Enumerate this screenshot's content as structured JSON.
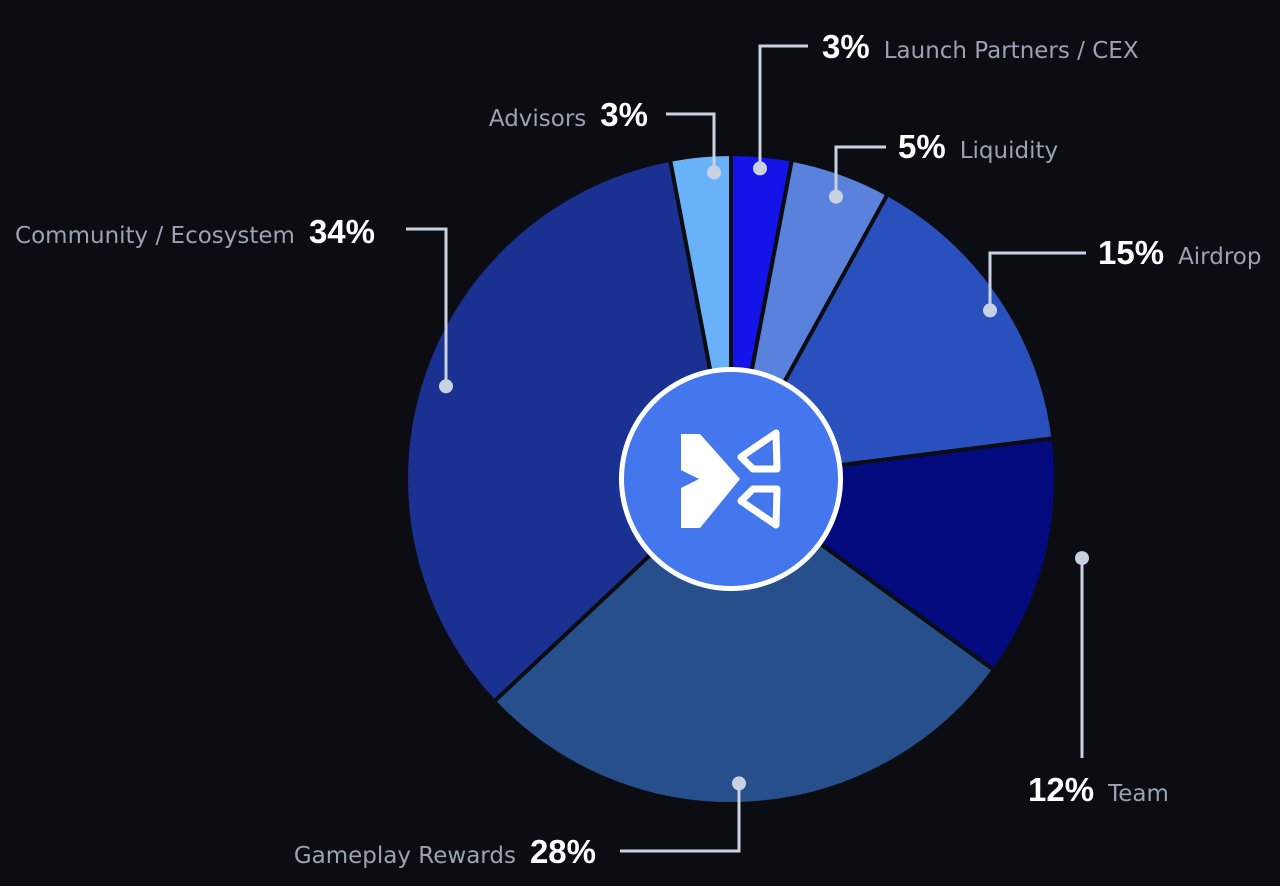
{
  "chart_data": {
    "type": "pie",
    "variant": "donut-with-center-logo",
    "start_angle_deg": 0,
    "direction": "clockwise",
    "slices": [
      {
        "label": "Launch Partners / CEX",
        "value": 3,
        "value_label": "3%",
        "color": "#1414e8"
      },
      {
        "label": "Liquidity",
        "value": 5,
        "value_label": "5%",
        "color": "#5a82dc"
      },
      {
        "label": "Airdrop",
        "value": 15,
        "value_label": "15%",
        "color": "#2a50be"
      },
      {
        "label": "Team",
        "value": 12,
        "value_label": "12%",
        "color": "#030a7e"
      },
      {
        "label": "Gameplay Rewards",
        "value": 28,
        "value_label": "28%",
        "color": "#274f8c"
      },
      {
        "label": "Community / Ecosystem",
        "value": 34,
        "value_label": "34%",
        "color": "#1b3191"
      },
      {
        "label": "Advisors",
        "value": 3,
        "value_label": "3%",
        "color": "#69b1f8"
      }
    ],
    "center_logo": {
      "icon": "x-arrow-logo-icon",
      "circle_color": "#4477ee",
      "ring_color": "#ffffff"
    },
    "callout_line_color": "#c8d2e0",
    "background_color": "#0b0d12",
    "legend": "none"
  }
}
